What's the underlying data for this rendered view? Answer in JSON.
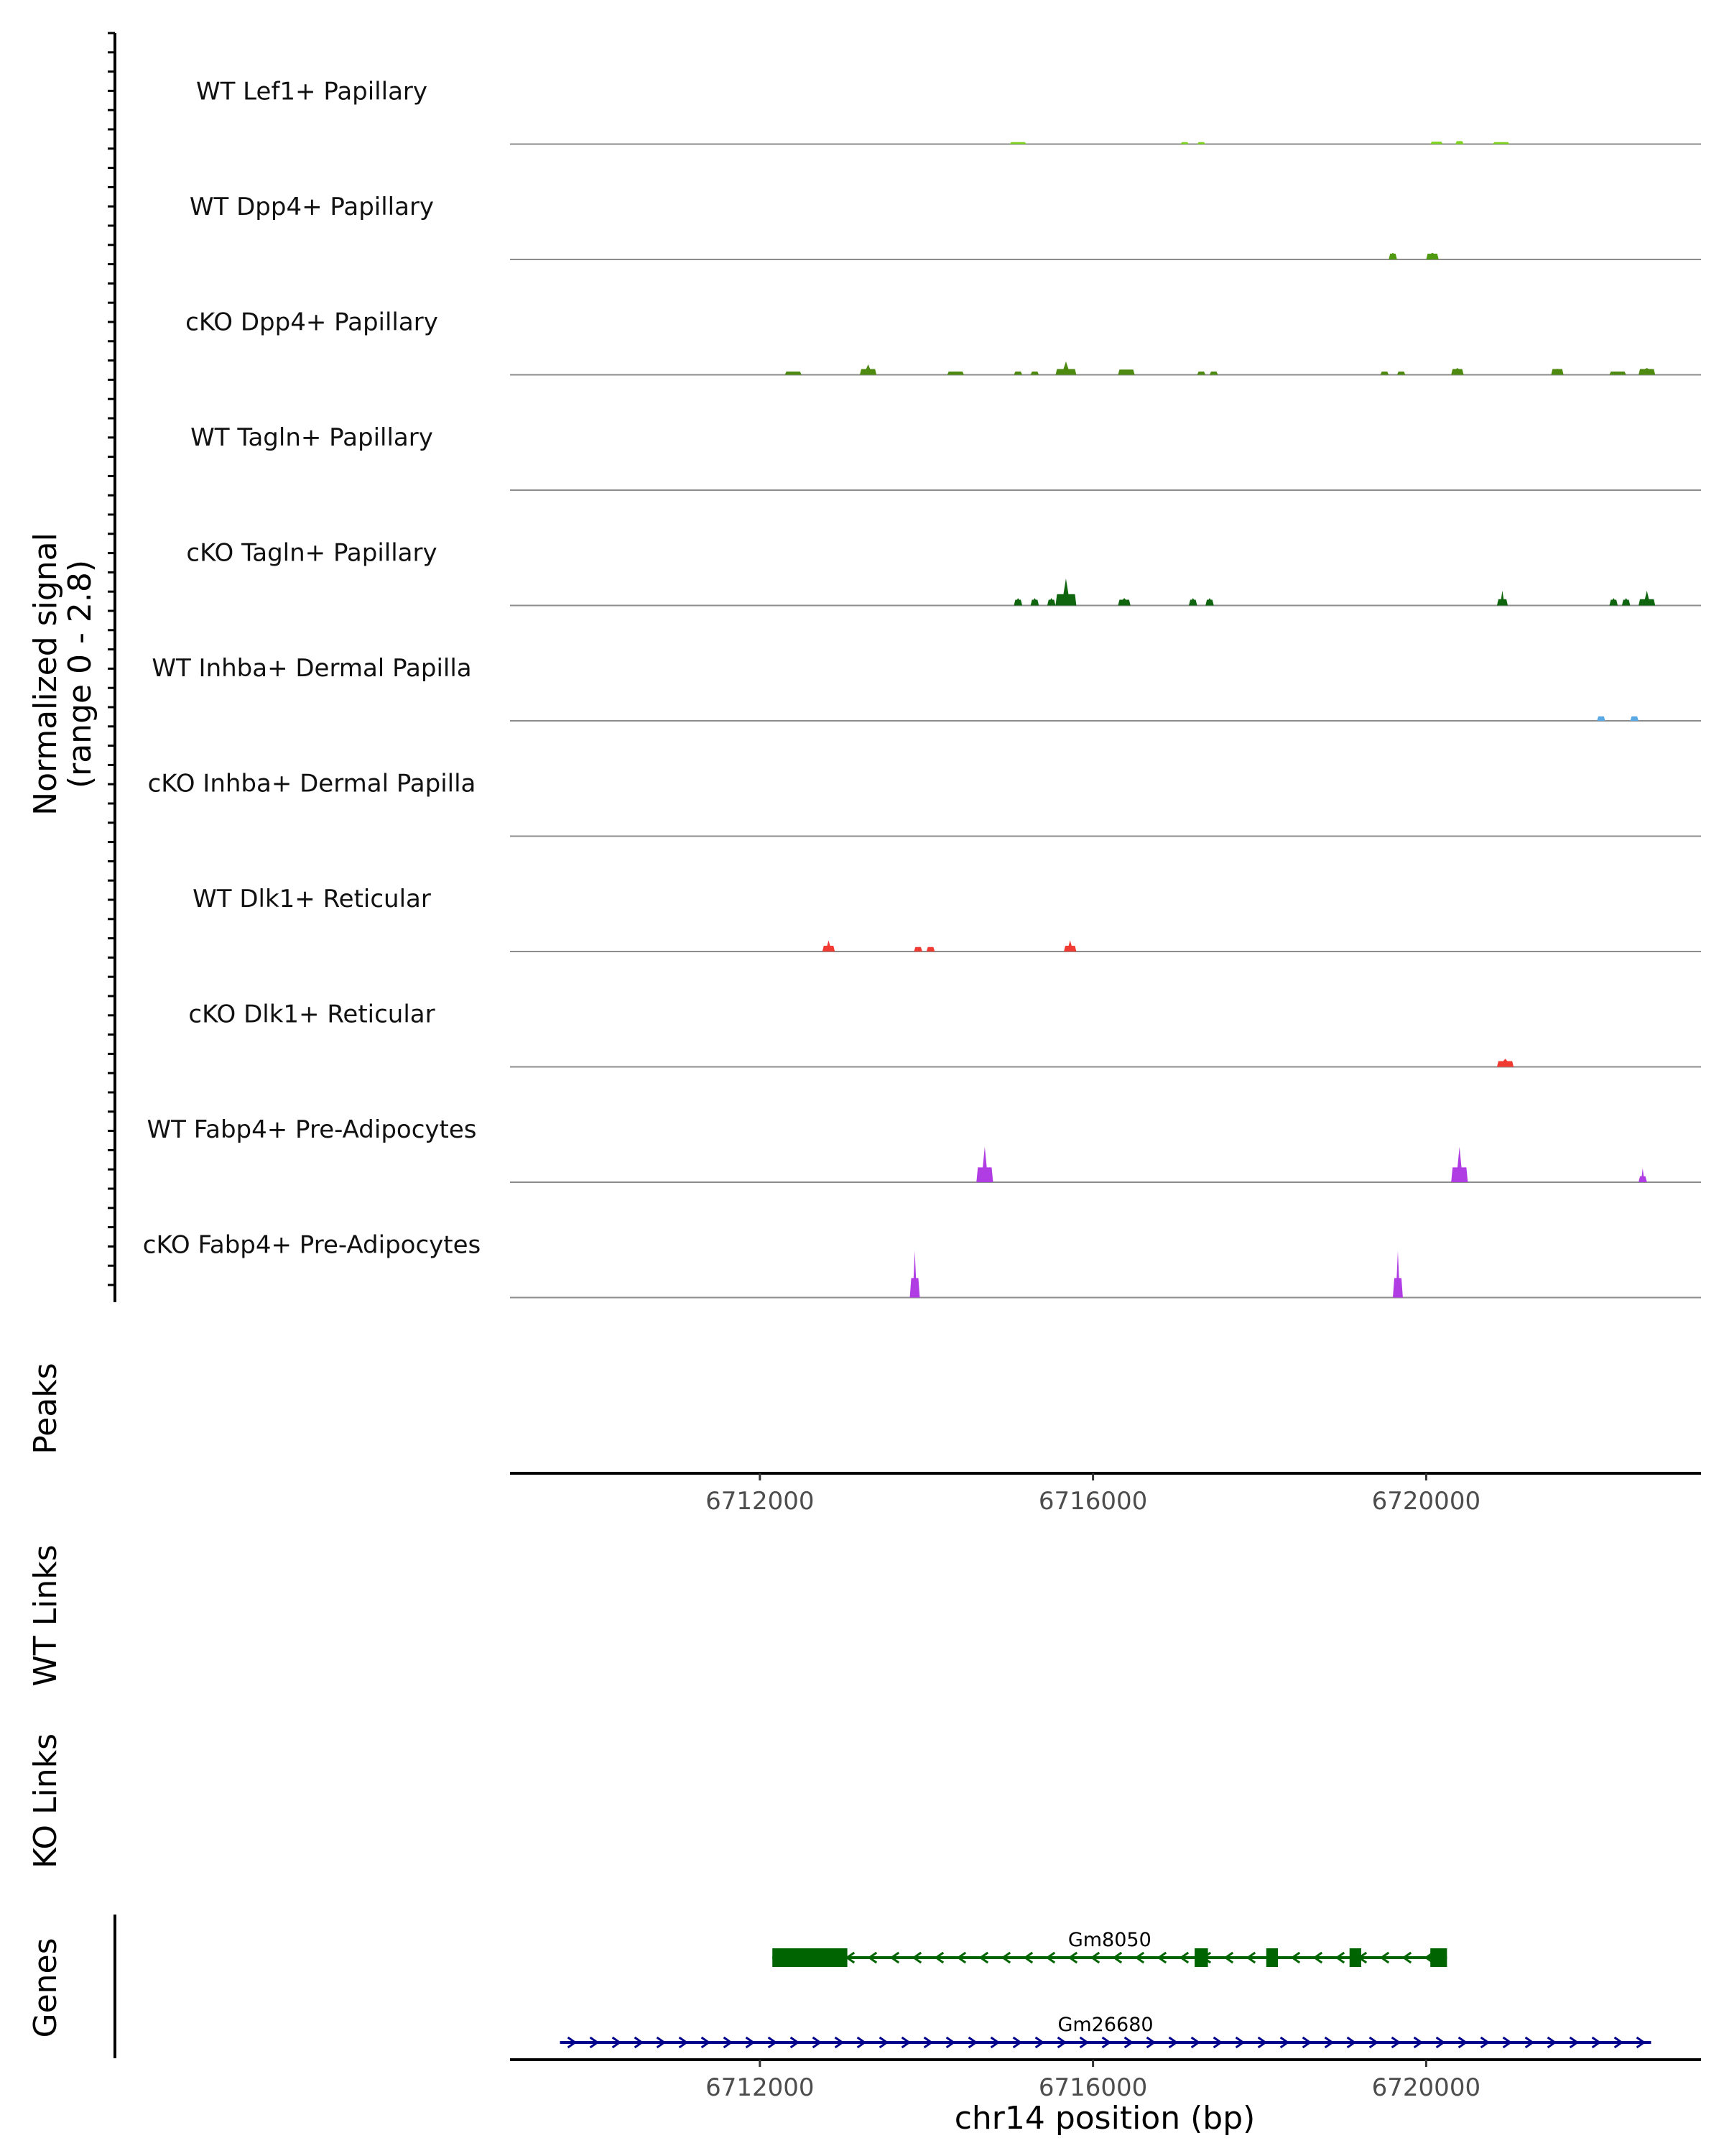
{
  "chart_data": {
    "type": "genome-coverage",
    "region": {
      "chromosome": "chr14",
      "start": 6709000,
      "end": 6723300
    },
    "coverage": {
      "ylabel_line1": "Normalized signal",
      "ylabel_line2": "(range 0 - 2.8)",
      "ylim": [
        0,
        2.8
      ],
      "tracks": [
        {
          "label": "WT Lef1+ Papillary",
          "color": "#7fd320",
          "peaks": [
            {
              "start": 6715000,
              "end": 6715200,
              "value": 0.13
            },
            {
              "start": 6717050,
              "end": 6717150,
              "value": 0.13
            },
            {
              "start": 6717250,
              "end": 6717350,
              "value": 0.13
            },
            {
              "start": 6720050,
              "end": 6720200,
              "value": 0.16
            },
            {
              "start": 6720350,
              "end": 6720450,
              "value": 0.2
            },
            {
              "start": 6720800,
              "end": 6721000,
              "value": 0.13
            }
          ]
        },
        {
          "label": "WT Dpp4+ Papillary",
          "color": "#4f9a10",
          "peaks": [
            {
              "start": 6719550,
              "end": 6719650,
              "value": 0.45
            },
            {
              "start": 6720000,
              "end": 6720150,
              "value": 0.45
            }
          ]
        },
        {
          "label": "cKO Dpp4+ Papillary",
          "color": "#4f8a10",
          "peaks": [
            {
              "start": 6712300,
              "end": 6712500,
              "value": 0.22
            },
            {
              "start": 6713200,
              "end": 6713400,
              "value": 0.7
            },
            {
              "start": 6714250,
              "end": 6714450,
              "value": 0.22
            },
            {
              "start": 6715050,
              "end": 6715150,
              "value": 0.22
            },
            {
              "start": 6715250,
              "end": 6715350,
              "value": 0.22
            },
            {
              "start": 6715550,
              "end": 6715800,
              "value": 0.9
            },
            {
              "start": 6716300,
              "end": 6716500,
              "value": 0.35
            },
            {
              "start": 6717250,
              "end": 6717350,
              "value": 0.22
            },
            {
              "start": 6717400,
              "end": 6717500,
              "value": 0.22
            },
            {
              "start": 6719450,
              "end": 6719550,
              "value": 0.22
            },
            {
              "start": 6719650,
              "end": 6719750,
              "value": 0.22
            },
            {
              "start": 6720300,
              "end": 6720450,
              "value": 0.45
            },
            {
              "start": 6721500,
              "end": 6721650,
              "value": 0.4
            },
            {
              "start": 6722200,
              "end": 6722400,
              "value": 0.22
            },
            {
              "start": 6722550,
              "end": 6722750,
              "value": 0.45
            }
          ]
        },
        {
          "label": "WT Tagln+ Papillary",
          "color": "#1c6e12",
          "peaks": []
        },
        {
          "label": "cKO Tagln+ Papillary",
          "color": "#0f660f",
          "peaks": [
            {
              "start": 6715050,
              "end": 6715150,
              "value": 0.5
            },
            {
              "start": 6715250,
              "end": 6715350,
              "value": 0.5
            },
            {
              "start": 6715450,
              "end": 6715550,
              "value": 0.5
            },
            {
              "start": 6715550,
              "end": 6715800,
              "value": 1.45
            },
            {
              "start": 6716300,
              "end": 6716450,
              "value": 0.5
            },
            {
              "start": 6717150,
              "end": 6717250,
              "value": 0.5
            },
            {
              "start": 6717350,
              "end": 6717450,
              "value": 0.5
            },
            {
              "start": 6720850,
              "end": 6720980,
              "value": 1.0
            },
            {
              "start": 6722200,
              "end": 6722300,
              "value": 0.5
            },
            {
              "start": 6722350,
              "end": 6722450,
              "value": 0.5
            },
            {
              "start": 6722550,
              "end": 6722750,
              "value": 1.0
            }
          ]
        },
        {
          "label": "WT Inhba+ Dermal Papilla",
          "color": "#5aa8e4",
          "peaks": [
            {
              "start": 6722050,
              "end": 6722150,
              "value": 0.3
            },
            {
              "start": 6722450,
              "end": 6722550,
              "value": 0.3
            }
          ]
        },
        {
          "label": "cKO Inhba+ Dermal Papilla",
          "color": "#5aa8e4",
          "peaks": []
        },
        {
          "label": "WT Dlk1+ Reticular",
          "color": "#f03a32",
          "peaks": [
            {
              "start": 6712750,
              "end": 6712900,
              "value": 0.75
            },
            {
              "start": 6713850,
              "end": 6713950,
              "value": 0.3
            },
            {
              "start": 6714000,
              "end": 6714100,
              "value": 0.3
            },
            {
              "start": 6715650,
              "end": 6715800,
              "value": 0.75
            }
          ]
        },
        {
          "label": "cKO Dlk1+ Reticular",
          "color": "#f03a32",
          "peaks": [
            {
              "start": 6720850,
              "end": 6721050,
              "value": 0.55
            }
          ]
        },
        {
          "label": "WT Fabp4+ Pre-Adipocytes",
          "color": "#b03ce4",
          "peaks": [
            {
              "start": 6714600,
              "end": 6714800,
              "value": 1.9
            },
            {
              "start": 6720300,
              "end": 6720500,
              "value": 1.9
            },
            {
              "start": 6722550,
              "end": 6722650,
              "value": 0.95
            }
          ]
        },
        {
          "label": "cKO Fabp4+ Pre-Adipocytes",
          "color": "#b03ce4",
          "peaks": [
            {
              "start": 6713800,
              "end": 6713920,
              "value": 2.5
            },
            {
              "start": 6719600,
              "end": 6719720,
              "value": 2.5
            }
          ]
        }
      ]
    },
    "peaks_label": "Peaks",
    "x_ticks": [
      6712000,
      6716000,
      6720000
    ],
    "x_tick_labels": [
      "6712000",
      "6716000",
      "6720000"
    ],
    "wt_links_label": "WT Links",
    "ko_links_label": "KO Links",
    "genes_label": "Genes",
    "genes": [
      {
        "name": "Gm8050",
        "strand": "-",
        "color": "#006400",
        "start": 6712150,
        "end": 6720250,
        "exons": [
          [
            6712150,
            6713050
          ],
          [
            6717220,
            6717380
          ],
          [
            6718080,
            6718220
          ],
          [
            6719080,
            6719220
          ],
          [
            6720050,
            6720250
          ]
        ]
      },
      {
        "name": "Gm26680",
        "strand": "+",
        "color": "#00008b",
        "start": 6709600,
        "end": 6722700,
        "exons": []
      }
    ],
    "xlabel": "chr14 position (bp)"
  }
}
